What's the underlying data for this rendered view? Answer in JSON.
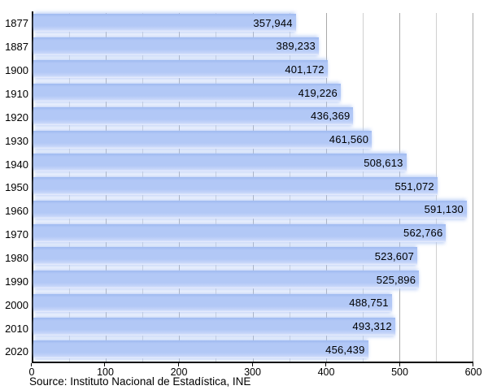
{
  "chart_data": {
    "type": "bar",
    "orientation": "horizontal",
    "title": "",
    "xlabel": "",
    "ylabel": "",
    "categories": [
      "1877",
      "1887",
      "1900",
      "1910",
      "1920",
      "1930",
      "1940",
      "1950",
      "1960",
      "1970",
      "1980",
      "1990",
      "2000",
      "2010",
      "2020"
    ],
    "values": [
      357944,
      389233,
      401172,
      419226,
      436369,
      461560,
      508613,
      551072,
      591130,
      562766,
      523607,
      525896,
      488751,
      493312,
      456439
    ],
    "value_labels": [
      "357,944",
      "389,233",
      "401,172",
      "419,226",
      "436,369",
      "461,560",
      "508,613",
      "551,072",
      "591,130",
      "562,766",
      "523,607",
      "525,896",
      "488,751",
      "493,312",
      "456,439"
    ],
    "xlim": [
      0,
      600000
    ],
    "x_major_tick_values": [
      0,
      100000,
      200000,
      300000,
      400000,
      500000,
      600000
    ],
    "x_major_tick_labels": [
      "0",
      "100",
      "200",
      "300",
      "400",
      "500",
      "600"
    ],
    "x_minor_tick_step": 50000,
    "grid": "vertical",
    "legend": "none"
  },
  "source": {
    "text": "Source: Instituto Nacional de Estadística, INE"
  },
  "colors": {
    "background": "#ffffff",
    "bar_top_edge": "#9fbaf0",
    "bar_main": "#b2c8f6",
    "bar_lower": "#c7d6f9",
    "bar_bottom_fade": "#e9effd",
    "bar_glow": "rgba(178,200,246,0.75)",
    "bar_value_text": "#000000",
    "axis_line": "#000000",
    "grid_major": "#a9a9a9",
    "grid_minor": "#cfcfcf",
    "tick_text": "#000000"
  }
}
